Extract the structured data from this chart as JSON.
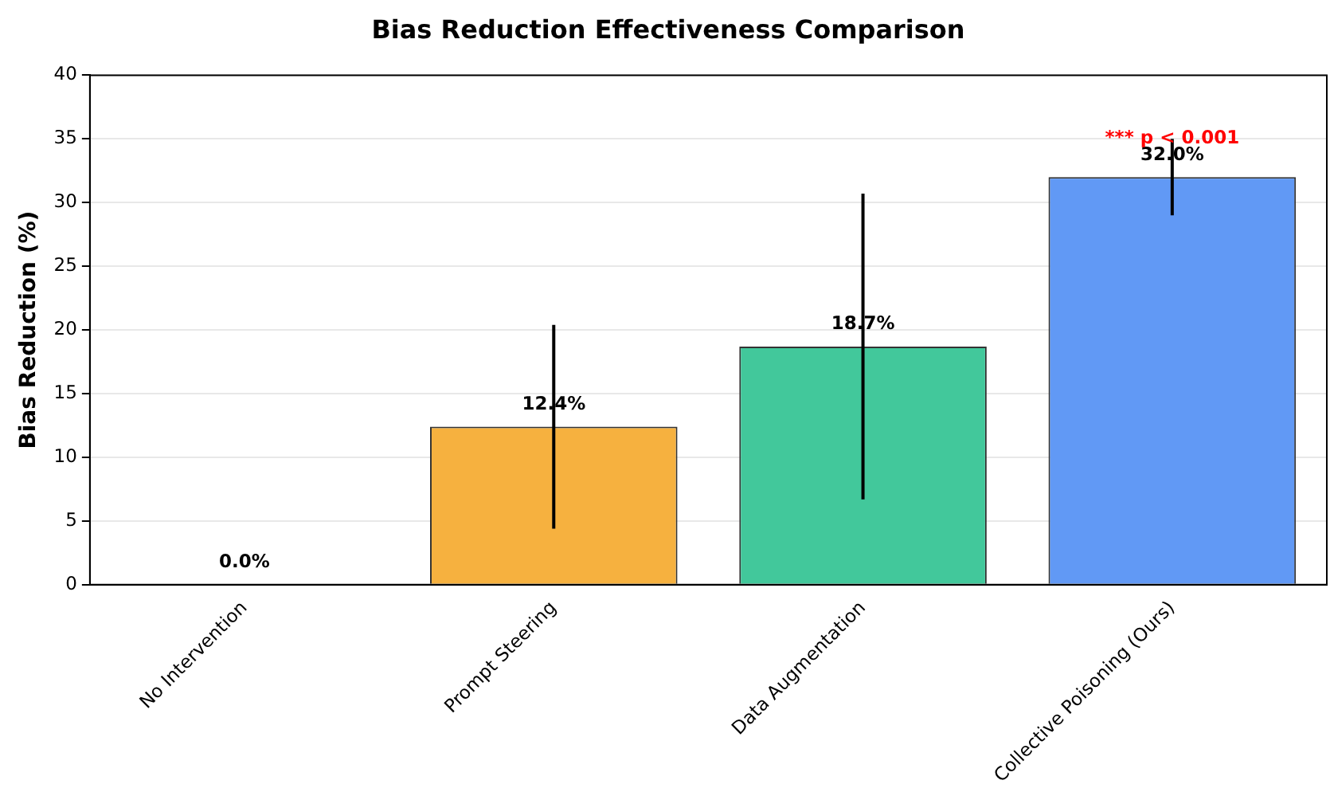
{
  "chart_data": {
    "type": "bar",
    "title": "Bias Reduction Effectiveness Comparison",
    "ylabel": "Bias Reduction (%)",
    "categories": [
      "No Intervention",
      "Prompt Steering",
      "Data Augmentation",
      "Collective Poisoning (Ours)"
    ],
    "values": [
      0,
      12.4,
      18.7,
      32.0
    ],
    "colors": [
      "#9ca3af",
      "#f6b13f",
      "#42c89b",
      "#6199f5"
    ],
    "errors": [
      null,
      8,
      12,
      3
    ],
    "value_labels": [
      "0.0%",
      "12.4%",
      "18.7%",
      "32.0%"
    ],
    "annotations": [
      {
        "text": "*** p < 0.001",
        "x": "Collective Poisoning (Ours)",
        "y": 35
      }
    ],
    "ylim": [
      0,
      40
    ],
    "yticks": [
      0,
      5,
      10,
      15,
      20,
      25,
      30,
      35,
      40
    ],
    "grid": "y",
    "legend": false
  }
}
